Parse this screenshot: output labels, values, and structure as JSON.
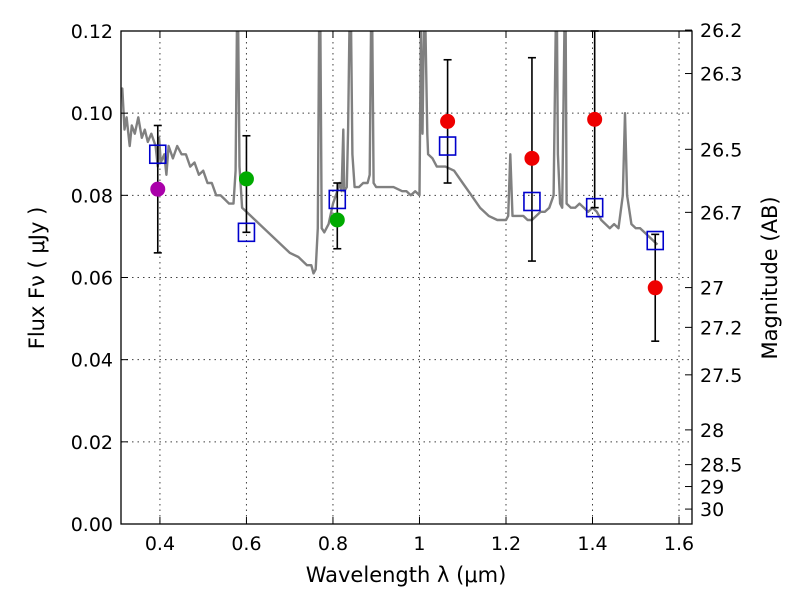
{
  "chart_data": {
    "type": "scatter",
    "title": "",
    "xlabel": "Wavelength  λ (μm)",
    "ylabel": "Flux  Fν  ( μJy )",
    "ylabel_right": "Magnitude (AB)",
    "xlim": [
      0.31,
      1.63
    ],
    "ylim": [
      0.0,
      0.12
    ],
    "grid": true,
    "x_ticks": [
      0.4,
      0.6,
      0.8,
      1.0,
      1.2,
      1.4,
      1.6
    ],
    "x_tick_labels": [
      "0.4",
      "0.6",
      "0.8",
      "1",
      "1.2",
      "1.4",
      "1.6"
    ],
    "y_ticks": [
      0.0,
      0.02,
      0.04,
      0.06,
      0.08,
      0.1,
      0.12
    ],
    "y_tick_labels": [
      "0.00",
      "0.02",
      "0.04",
      "0.06",
      "0.08",
      "0.10",
      "0.12"
    ],
    "right_ticks": [
      {
        "mag": 26.2,
        "label": "26.2"
      },
      {
        "mag": 26.3,
        "label": "26.3"
      },
      {
        "mag": 26.5,
        "label": "26.5"
      },
      {
        "mag": 26.7,
        "label": "26.7"
      },
      {
        "mag": 27.0,
        "label": "27"
      },
      {
        "mag": 27.2,
        "label": "27.2"
      },
      {
        "mag": 27.5,
        "label": "27.5"
      },
      {
        "mag": 28.0,
        "label": "28"
      },
      {
        "mag": 28.5,
        "label": "28.5"
      },
      {
        "mag": 29.0,
        "label": "29"
      },
      {
        "mag": 30.0,
        "label": "30"
      }
    ],
    "colors": {
      "sed": "#808080",
      "model": "#0000cc",
      "errorbar": "#000000",
      "red": "#ee0000",
      "green": "#00aa00",
      "purple": "#aa00aa"
    },
    "sed_line": [
      [
        0.31,
        0.104
      ],
      [
        0.313,
        0.106
      ],
      [
        0.318,
        0.096
      ],
      [
        0.323,
        0.099
      ],
      [
        0.33,
        0.092
      ],
      [
        0.335,
        0.097
      ],
      [
        0.342,
        0.095
      ],
      [
        0.35,
        0.099
      ],
      [
        0.358,
        0.094
      ],
      [
        0.365,
        0.096
      ],
      [
        0.372,
        0.093
      ],
      [
        0.38,
        0.095
      ],
      [
        0.39,
        0.092
      ],
      [
        0.395,
        0.087
      ],
      [
        0.398,
        0.094
      ],
      [
        0.402,
        0.088
      ],
      [
        0.41,
        0.09
      ],
      [
        0.415,
        0.085
      ],
      [
        0.42,
        0.092
      ],
      [
        0.43,
        0.089
      ],
      [
        0.44,
        0.092
      ],
      [
        0.45,
        0.09
      ],
      [
        0.46,
        0.09
      ],
      [
        0.47,
        0.087
      ],
      [
        0.48,
        0.088
      ],
      [
        0.49,
        0.085
      ],
      [
        0.5,
        0.086
      ],
      [
        0.51,
        0.083
      ],
      [
        0.52,
        0.083
      ],
      [
        0.53,
        0.08
      ],
      [
        0.54,
        0.08
      ],
      [
        0.55,
        0.079
      ],
      [
        0.56,
        0.078
      ],
      [
        0.57,
        0.078
      ],
      [
        0.575,
        0.086
      ],
      [
        0.578,
        0.12
      ],
      [
        0.581,
        0.12
      ],
      [
        0.584,
        0.087
      ],
      [
        0.59,
        0.077
      ],
      [
        0.6,
        0.076
      ],
      [
        0.62,
        0.074
      ],
      [
        0.64,
        0.072
      ],
      [
        0.66,
        0.07
      ],
      [
        0.68,
        0.068
      ],
      [
        0.7,
        0.066
      ],
      [
        0.72,
        0.065
      ],
      [
        0.74,
        0.063
      ],
      [
        0.75,
        0.063
      ],
      [
        0.755,
        0.061
      ],
      [
        0.76,
        0.062
      ],
      [
        0.765,
        0.072
      ],
      [
        0.768,
        0.12
      ],
      [
        0.771,
        0.12
      ],
      [
        0.774,
        0.072
      ],
      [
        0.78,
        0.071
      ],
      [
        0.79,
        0.073
      ],
      [
        0.8,
        0.078
      ],
      [
        0.81,
        0.081
      ],
      [
        0.815,
        0.083
      ],
      [
        0.82,
        0.081
      ],
      [
        0.824,
        0.096
      ],
      [
        0.826,
        0.081
      ],
      [
        0.832,
        0.082
      ],
      [
        0.835,
        0.096
      ],
      [
        0.838,
        0.12
      ],
      [
        0.842,
        0.12
      ],
      [
        0.845,
        0.09
      ],
      [
        0.85,
        0.082
      ],
      [
        0.86,
        0.082
      ],
      [
        0.87,
        0.083
      ],
      [
        0.88,
        0.083
      ],
      [
        0.885,
        0.085
      ],
      [
        0.888,
        0.12
      ],
      [
        0.891,
        0.12
      ],
      [
        0.894,
        0.083
      ],
      [
        0.9,
        0.082
      ],
      [
        0.92,
        0.082
      ],
      [
        0.94,
        0.082
      ],
      [
        0.96,
        0.081
      ],
      [
        0.97,
        0.081
      ],
      [
        0.98,
        0.08
      ],
      [
        0.99,
        0.081
      ],
      [
        1.0,
        0.08
      ],
      [
        1.003,
        0.12
      ],
      [
        1.007,
        0.095
      ],
      [
        1.01,
        0.12
      ],
      [
        1.014,
        0.12
      ],
      [
        1.018,
        0.095
      ],
      [
        1.02,
        0.09
      ],
      [
        1.03,
        0.089
      ],
      [
        1.04,
        0.087
      ],
      [
        1.06,
        0.087
      ],
      [
        1.08,
        0.086
      ],
      [
        1.1,
        0.083
      ],
      [
        1.12,
        0.08
      ],
      [
        1.14,
        0.077
      ],
      [
        1.16,
        0.075
      ],
      [
        1.18,
        0.074
      ],
      [
        1.2,
        0.074
      ],
      [
        1.205,
        0.075
      ],
      [
        1.21,
        0.09
      ],
      [
        1.215,
        0.075
      ],
      [
        1.22,
        0.075
      ],
      [
        1.24,
        0.075
      ],
      [
        1.25,
        0.074
      ],
      [
        1.26,
        0.074
      ],
      [
        1.27,
        0.075
      ],
      [
        1.28,
        0.076
      ],
      [
        1.29,
        0.076
      ],
      [
        1.3,
        0.077
      ],
      [
        1.31,
        0.08
      ],
      [
        1.315,
        0.12
      ],
      [
        1.318,
        0.12
      ],
      [
        1.32,
        0.09
      ],
      [
        1.325,
        0.078
      ],
      [
        1.33,
        0.077
      ],
      [
        1.335,
        0.12
      ],
      [
        1.338,
        0.12
      ],
      [
        1.34,
        0.078
      ],
      [
        1.35,
        0.077
      ],
      [
        1.36,
        0.077
      ],
      [
        1.37,
        0.078
      ],
      [
        1.38,
        0.077
      ],
      [
        1.39,
        0.076
      ],
      [
        1.4,
        0.077
      ],
      [
        1.41,
        0.076
      ],
      [
        1.42,
        0.074
      ],
      [
        1.43,
        0.073
      ],
      [
        1.44,
        0.072
      ],
      [
        1.45,
        0.073
      ],
      [
        1.46,
        0.072
      ],
      [
        1.47,
        0.08
      ],
      [
        1.475,
        0.1
      ],
      [
        1.48,
        0.08
      ],
      [
        1.49,
        0.073
      ],
      [
        1.5,
        0.072
      ],
      [
        1.51,
        0.072
      ],
      [
        1.52,
        0.071
      ],
      [
        1.53,
        0.07
      ],
      [
        1.54,
        0.069
      ],
      [
        1.55,
        0.068
      ]
    ],
    "model_points": [
      {
        "x": 0.395,
        "y": 0.09
      },
      {
        "x": 0.6,
        "y": 0.071
      },
      {
        "x": 0.81,
        "y": 0.079
      },
      {
        "x": 1.065,
        "y": 0.092
      },
      {
        "x": 1.26,
        "y": 0.0785
      },
      {
        "x": 1.405,
        "y": 0.077
      },
      {
        "x": 1.545,
        "y": 0.069
      }
    ],
    "observed_points": [
      {
        "x": 0.395,
        "y": 0.0815,
        "color": "purple",
        "err_low": 0.066,
        "err_high": 0.097
      },
      {
        "x": 0.6,
        "y": 0.084,
        "color": "green",
        "err_low": 0.071,
        "err_high": 0.0945
      },
      {
        "x": 0.81,
        "y": 0.074,
        "color": "green",
        "err_low": 0.067,
        "err_high": 0.083
      },
      {
        "x": 1.065,
        "y": 0.098,
        "color": "red",
        "err_low": 0.083,
        "err_high": 0.113
      },
      {
        "x": 1.26,
        "y": 0.089,
        "color": "red",
        "err_low": 0.064,
        "err_high": 0.1135
      },
      {
        "x": 1.405,
        "y": 0.0985,
        "color": "red",
        "err_low": 0.077,
        "err_high": 0.12
      },
      {
        "x": 1.545,
        "y": 0.0575,
        "color": "red",
        "err_low": 0.0445,
        "err_high": 0.0705
      }
    ]
  }
}
